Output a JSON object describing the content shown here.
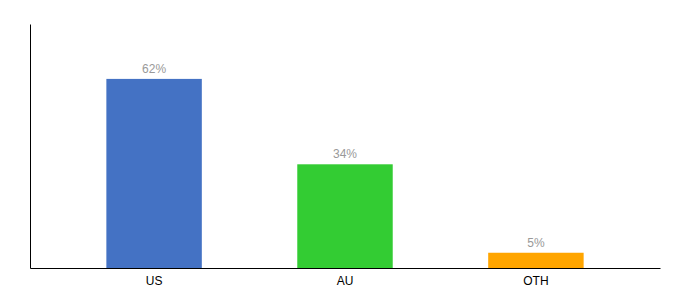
{
  "chart_data": {
    "type": "bar",
    "categories": [
      "US",
      "AU",
      "OTH"
    ],
    "values": [
      62,
      34,
      5
    ],
    "value_labels": [
      "62%",
      "34%",
      "5%"
    ],
    "colors": [
      "#4472C4",
      "#33CC33",
      "#FFA500"
    ],
    "ylim": [
      0,
      80
    ],
    "data_labels": true,
    "tick_labels": "x"
  }
}
